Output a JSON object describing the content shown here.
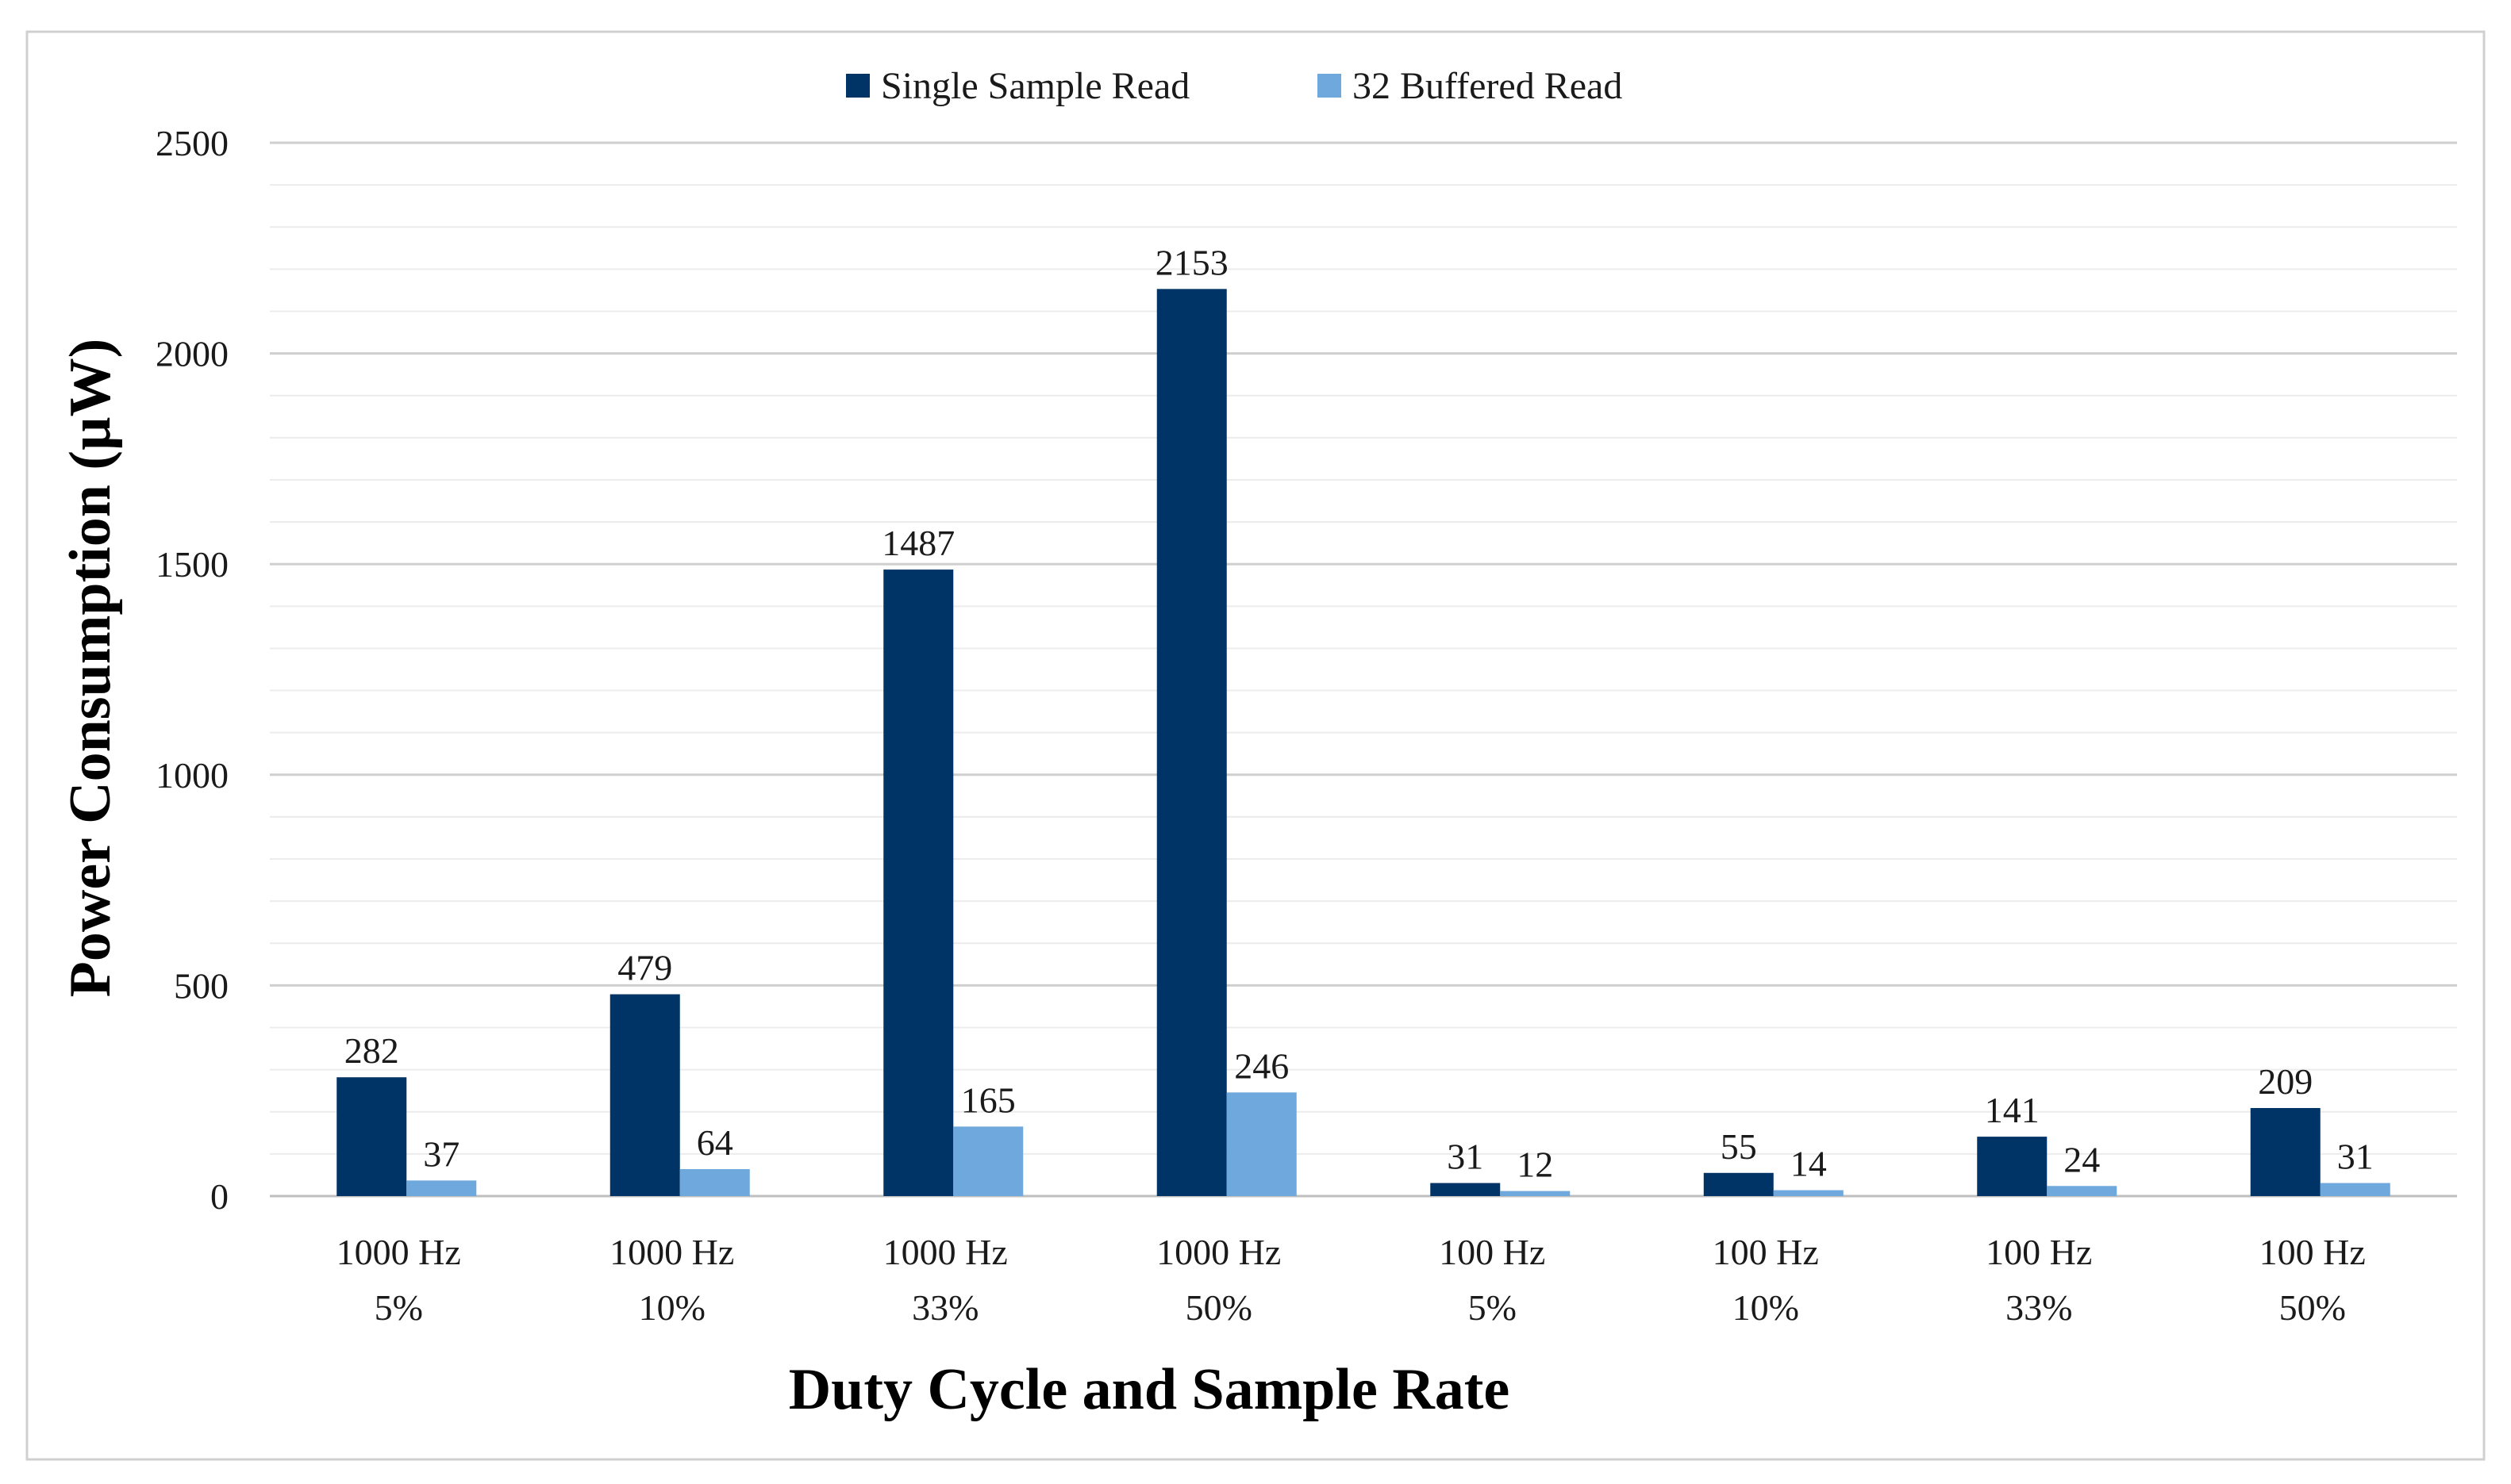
{
  "chart_data": {
    "type": "bar",
    "title": "",
    "xlabel": "Duty Cycle and Sample Rate",
    "ylabel": "Power Consumption (µW)",
    "ylim": [
      0,
      2500
    ],
    "yticks": [
      "0",
      "500",
      "1000",
      "1500",
      "2000",
      "2500"
    ],
    "grid": true,
    "legend_position": "top-center",
    "categories": [
      [
        "1000 Hz",
        "5%"
      ],
      [
        "1000 Hz",
        "10%"
      ],
      [
        "1000 Hz",
        "33%"
      ],
      [
        "1000 Hz",
        "50%"
      ],
      [
        "100 Hz",
        "5%"
      ],
      [
        "100 Hz",
        "10%"
      ],
      [
        "100 Hz",
        "33%"
      ],
      [
        "100 Hz",
        "50%"
      ]
    ],
    "series": [
      {
        "name": "Single Sample Read",
        "color": "#003366",
        "values": [
          282,
          479,
          1487,
          2153,
          31,
          55,
          141,
          209
        ]
      },
      {
        "name": "32 Buffered Read",
        "color": "#6fa8dc",
        "values": [
          37,
          64,
          165,
          246,
          12,
          14,
          24,
          31
        ]
      }
    ]
  }
}
